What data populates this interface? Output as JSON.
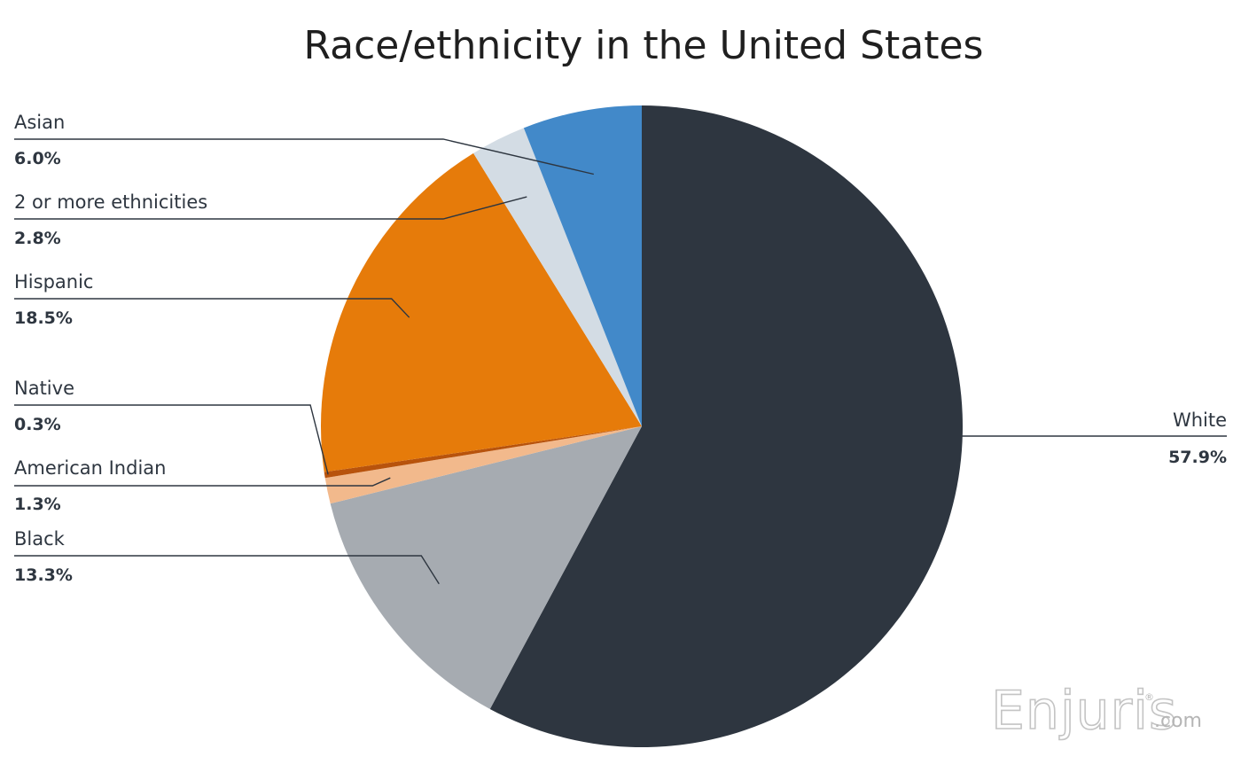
{
  "chart_data": {
    "type": "pie",
    "title": "Race/ethnicity in the United States",
    "start_angle_deg": 0,
    "direction": "clockwise",
    "slices": [
      {
        "label": "White",
        "value_label": "57.9%",
        "value": 57.9,
        "color": "#2e3640"
      },
      {
        "label": "Black",
        "value_label": "13.3%",
        "value": 13.3,
        "color": "#a6abb1"
      },
      {
        "label": "American Indian",
        "value_label": "1.3%",
        "value": 1.3,
        "color": "#f2b98c"
      },
      {
        "label": "Native",
        "value_label": "0.3%",
        "value": 0.3,
        "color": "#b8530c"
      },
      {
        "label": "Hispanic",
        "value_label": "18.5%",
        "value": 18.5,
        "color": "#e67b0a"
      },
      {
        "label": "2 or more ethnicities",
        "value_label": "2.8%",
        "value": 2.8,
        "color": "#d3dce4"
      },
      {
        "label": "Asian",
        "value_label": "6.0%",
        "value": 6.0,
        "color": "#4289c9"
      }
    ]
  },
  "watermark": {
    "brand": "Enjuris",
    "registered": "®",
    "suffix": ".com"
  }
}
